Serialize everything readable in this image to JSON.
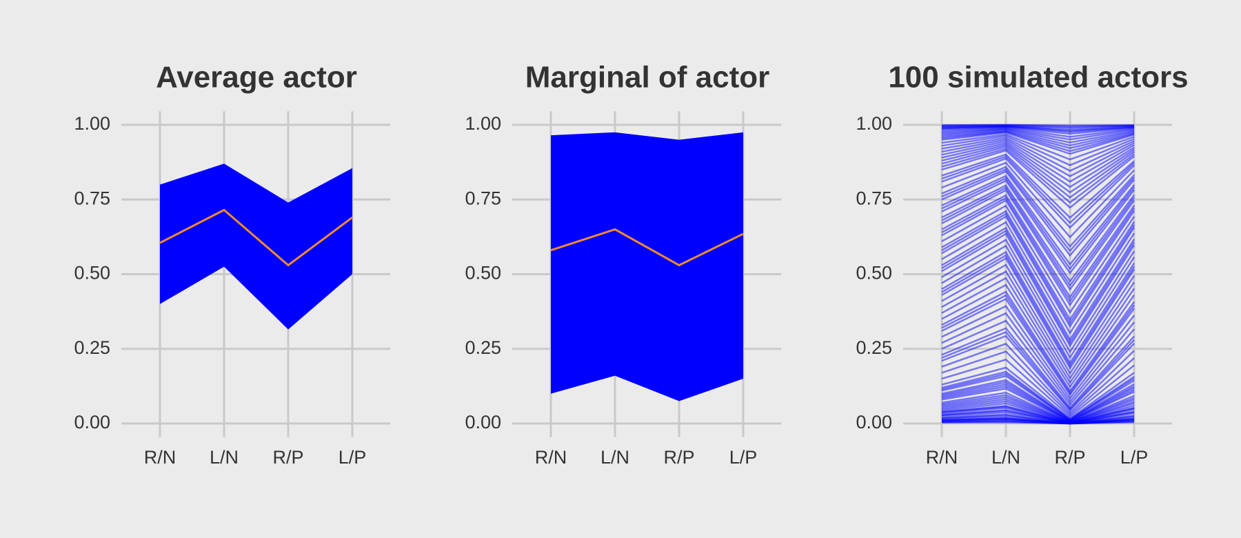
{
  "chart_data": [
    {
      "type": "band",
      "title": "Average actor",
      "categories": [
        "R/N",
        "L/N",
        "R/P",
        "L/P"
      ],
      "ylim": [
        -0.05,
        1.05
      ],
      "yticks": [
        {
          "value": 0,
          "label": "0.00"
        },
        {
          "value": 0.25,
          "label": "0.25"
        },
        {
          "value": 0.5,
          "label": "0.50"
        },
        {
          "value": 0.75,
          "label": "0.75"
        },
        {
          "value": 1,
          "label": "1.00"
        }
      ],
      "grid": true,
      "series": [
        {
          "color": "#0000ff",
          "lower": [
            0.4,
            0.525,
            0.315,
            0.5
          ],
          "upper": [
            0.8,
            0.87,
            0.74,
            0.855
          ]
        },
        {
          "color": "#f08c28",
          "values": [
            0.605,
            0.715,
            0.53,
            0.69
          ]
        }
      ]
    },
    {
      "type": "band",
      "title": "Marginal of actor",
      "categories": [
        "R/N",
        "L/N",
        "R/P",
        "L/P"
      ],
      "ylim": [
        -0.05,
        1.05
      ],
      "yticks": [
        {
          "value": 0,
          "label": "0.00"
        },
        {
          "value": 0.25,
          "label": "0.25"
        },
        {
          "value": 0.5,
          "label": "0.50"
        },
        {
          "value": 0.75,
          "label": "0.75"
        },
        {
          "value": 1,
          "label": "1.00"
        }
      ],
      "grid": true,
      "series": [
        {
          "color": "#0000ff",
          "lower": [
            0.1,
            0.16,
            0.075,
            0.15
          ],
          "upper": [
            0.965,
            0.975,
            0.95,
            0.975
          ]
        },
        {
          "color": "#f08c28",
          "values": [
            0.58,
            0.65,
            0.53,
            0.635
          ]
        }
      ]
    },
    {
      "type": "line",
      "title": "100 simulated actors",
      "categories": [
        "R/N",
        "L/N",
        "R/P",
        "L/P"
      ],
      "ylim": [
        -0.05,
        1.05
      ],
      "yticks": [
        {
          "value": 0,
          "label": "0.00"
        },
        {
          "value": 0.25,
          "label": "0.25"
        },
        {
          "value": 0.5,
          "label": "0.50"
        },
        {
          "value": 0.75,
          "label": "0.75"
        },
        {
          "value": 1,
          "label": "1.00"
        }
      ],
      "grid": true,
      "color": "#0000ff",
      "alpha": 0.5,
      "series": [
        {
          "values": [
            0.005,
            0.007,
            0.0,
            0.007
          ]
        },
        {
          "values": [
            0.008,
            0.012,
            0.0,
            0.011
          ]
        },
        {
          "values": [
            0.01,
            0.015,
            0.0,
            0.013
          ]
        },
        {
          "values": [
            0.012,
            0.018,
            0.0,
            0.016
          ]
        },
        {
          "values": [
            0.015,
            0.022,
            0.0,
            0.02
          ]
        },
        {
          "values": [
            0.02,
            0.03,
            0.0,
            0.027
          ]
        },
        {
          "values": [
            0.025,
            0.037,
            0.001,
            0.034
          ]
        },
        {
          "values": [
            0.03,
            0.045,
            0.001,
            0.04
          ]
        },
        {
          "values": [
            0.035,
            0.052,
            0.001,
            0.047
          ]
        },
        {
          "values": [
            0.04,
            0.059,
            0.002,
            0.053
          ]
        },
        {
          "values": [
            0.045,
            0.067,
            0.002,
            0.06
          ]
        },
        {
          "values": [
            0.05,
            0.074,
            0.003,
            0.067
          ]
        },
        {
          "values": [
            0.06,
            0.088,
            0.004,
            0.08
          ]
        },
        {
          "values": [
            0.07,
            0.103,
            0.005,
            0.093
          ]
        },
        {
          "values": [
            0.08,
            0.117,
            0.006,
            0.106
          ]
        },
        {
          "values": [
            0.09,
            0.131,
            0.008,
            0.119
          ]
        },
        {
          "values": [
            0.1,
            0.145,
            0.01,
            0.132
          ]
        },
        {
          "values": [
            0.11,
            0.159,
            0.012,
            0.144
          ]
        },
        {
          "values": [
            0.12,
            0.173,
            0.014,
            0.157
          ]
        },
        {
          "values": [
            0.13,
            0.187,
            0.017,
            0.17
          ]
        },
        {
          "values": [
            0.15,
            0.214,
            0.023,
            0.195
          ]
        },
        {
          "values": [
            0.17,
            0.241,
            0.029,
            0.219
          ]
        },
        {
          "values": [
            0.19,
            0.267,
            0.036,
            0.244
          ]
        },
        {
          "values": [
            0.21,
            0.293,
            0.044,
            0.268
          ]
        },
        {
          "values": [
            0.23,
            0.319,
            0.053,
            0.292
          ]
        },
        {
          "values": [
            0.25,
            0.344,
            0.063,
            0.316
          ]
        },
        {
          "values": [
            0.27,
            0.369,
            0.073,
            0.339
          ]
        },
        {
          "values": [
            0.29,
            0.393,
            0.084,
            0.362
          ]
        },
        {
          "values": [
            0.31,
            0.417,
            0.096,
            0.385
          ]
        },
        {
          "values": [
            0.33,
            0.441,
            0.109,
            0.407
          ]
        },
        {
          "values": [
            0.35,
            0.464,
            0.123,
            0.43
          ]
        },
        {
          "values": [
            0.37,
            0.487,
            0.137,
            0.452
          ]
        },
        {
          "values": [
            0.39,
            0.509,
            0.152,
            0.473
          ]
        },
        {
          "values": [
            0.41,
            0.531,
            0.168,
            0.495
          ]
        },
        {
          "values": [
            0.43,
            0.553,
            0.185,
            0.516
          ]
        },
        {
          "values": [
            0.45,
            0.574,
            0.203,
            0.537
          ]
        },
        {
          "values": [
            0.47,
            0.595,
            0.221,
            0.557
          ]
        },
        {
          "values": [
            0.49,
            0.615,
            0.24,
            0.577
          ]
        },
        {
          "values": [
            0.51,
            0.635,
            0.26,
            0.597
          ]
        },
        {
          "values": [
            0.53,
            0.655,
            0.281,
            0.617
          ]
        },
        {
          "values": [
            0.55,
            0.674,
            0.303,
            0.637
          ]
        },
        {
          "values": [
            0.57,
            0.693,
            0.325,
            0.656
          ]
        },
        {
          "values": [
            0.59,
            0.711,
            0.348,
            0.675
          ]
        },
        {
          "values": [
            0.61,
            0.729,
            0.372,
            0.693
          ]
        },
        {
          "values": [
            0.63,
            0.747,
            0.397,
            0.712
          ]
        },
        {
          "values": [
            0.65,
            0.764,
            0.423,
            0.73
          ]
        },
        {
          "values": [
            0.67,
            0.781,
            0.449,
            0.747
          ]
        },
        {
          "values": [
            0.69,
            0.797,
            0.476,
            0.765
          ]
        },
        {
          "values": [
            0.71,
            0.813,
            0.504,
            0.782
          ]
        },
        {
          "values": [
            0.73,
            0.829,
            0.533,
            0.799
          ]
        },
        {
          "values": [
            0.75,
            0.844,
            0.563,
            0.816
          ]
        },
        {
          "values": [
            0.77,
            0.859,
            0.593,
            0.832
          ]
        },
        {
          "values": [
            0.79,
            0.873,
            0.624,
            0.848
          ]
        },
        {
          "values": [
            0.81,
            0.887,
            0.656,
            0.864
          ]
        },
        {
          "values": [
            0.83,
            0.901,
            0.689,
            0.879
          ]
        },
        {
          "values": [
            0.85,
            0.914,
            0.723,
            0.895
          ]
        },
        {
          "values": [
            0.87,
            0.927,
            0.757,
            0.91
          ]
        },
        {
          "values": [
            0.89,
            0.939,
            0.792,
            0.924
          ]
        },
        {
          "values": [
            0.91,
            0.951,
            0.828,
            0.939
          ]
        },
        {
          "values": [
            0.93,
            0.963,
            0.865,
            0.953
          ]
        },
        {
          "values": [
            0.95,
            0.974,
            0.903,
            0.967
          ]
        },
        {
          "values": [
            0.97,
            0.985,
            0.941,
            0.98
          ]
        },
        {
          "values": [
            0.99,
            0.995,
            0.98,
            0.993
          ]
        },
        {
          "values": [
            0.003,
            0.004,
            0.0,
            0.004
          ]
        },
        {
          "values": [
            0.006,
            0.009,
            0.0,
            0.008
          ]
        },
        {
          "values": [
            0.011,
            0.016,
            0.0,
            0.015
          ]
        },
        {
          "values": [
            0.018,
            0.027,
            0.0,
            0.024
          ]
        },
        {
          "values": [
            0.028,
            0.042,
            0.001,
            0.038
          ]
        },
        {
          "values": [
            0.038,
            0.056,
            0.001,
            0.051
          ]
        },
        {
          "values": [
            0.055,
            0.081,
            0.003,
            0.073
          ]
        },
        {
          "values": [
            0.065,
            0.095,
            0.004,
            0.086
          ]
        },
        {
          "values": [
            0.085,
            0.124,
            0.007,
            0.112
          ]
        },
        {
          "values": [
            0.095,
            0.138,
            0.009,
            0.125
          ]
        },
        {
          "values": [
            0.115,
            0.166,
            0.013,
            0.151
          ]
        },
        {
          "values": [
            0.22,
            0.306,
            0.048,
            0.28
          ]
        },
        {
          "values": [
            0.32,
            0.429,
            0.102,
            0.396
          ]
        },
        {
          "values": [
            0.44,
            0.563,
            0.194,
            0.526
          ]
        },
        {
          "values": [
            0.52,
            0.645,
            0.27,
            0.607
          ]
        },
        {
          "values": [
            0.58,
            0.702,
            0.336,
            0.665
          ]
        },
        {
          "values": [
            0.64,
            0.755,
            0.41,
            0.721
          ]
        },
        {
          "values": [
            0.68,
            0.789,
            0.462,
            0.756
          ]
        },
        {
          "values": [
            0.72,
            0.821,
            0.518,
            0.791
          ]
        },
        {
          "values": [
            0.76,
            0.851,
            0.578,
            0.824
          ]
        },
        {
          "values": [
            0.82,
            0.894,
            0.672,
            0.872
          ]
        },
        {
          "values": [
            0.86,
            0.92,
            0.74,
            0.902
          ]
        },
        {
          "values": [
            0.88,
            0.933,
            0.774,
            0.917
          ]
        },
        {
          "values": [
            0.9,
            0.945,
            0.81,
            0.932
          ]
        },
        {
          "values": [
            0.92,
            0.957,
            0.846,
            0.946
          ]
        },
        {
          "values": [
            0.94,
            0.968,
            0.884,
            0.96
          ]
        },
        {
          "values": [
            0.955,
            0.977,
            0.912,
            0.97
          ]
        },
        {
          "values": [
            0.96,
            0.979,
            0.922,
            0.973
          ]
        },
        {
          "values": [
            0.965,
            0.982,
            0.931,
            0.977
          ]
        },
        {
          "values": [
            0.975,
            0.987,
            0.951,
            0.984
          ]
        },
        {
          "values": [
            0.98,
            0.99,
            0.96,
            0.987
          ]
        },
        {
          "values": [
            0.985,
            0.992,
            0.97,
            0.99
          ]
        },
        {
          "values": [
            0.988,
            0.994,
            0.976,
            0.992
          ]
        },
        {
          "values": [
            0.992,
            0.996,
            0.984,
            0.995
          ]
        },
        {
          "values": [
            0.995,
            0.997,
            0.99,
            0.997
          ]
        },
        {
          "values": [
            0.997,
            0.999,
            0.994,
            0.998
          ]
        },
        {
          "values": [
            0.999,
            1.0,
            0.998,
            0.999
          ]
        }
      ]
    }
  ]
}
